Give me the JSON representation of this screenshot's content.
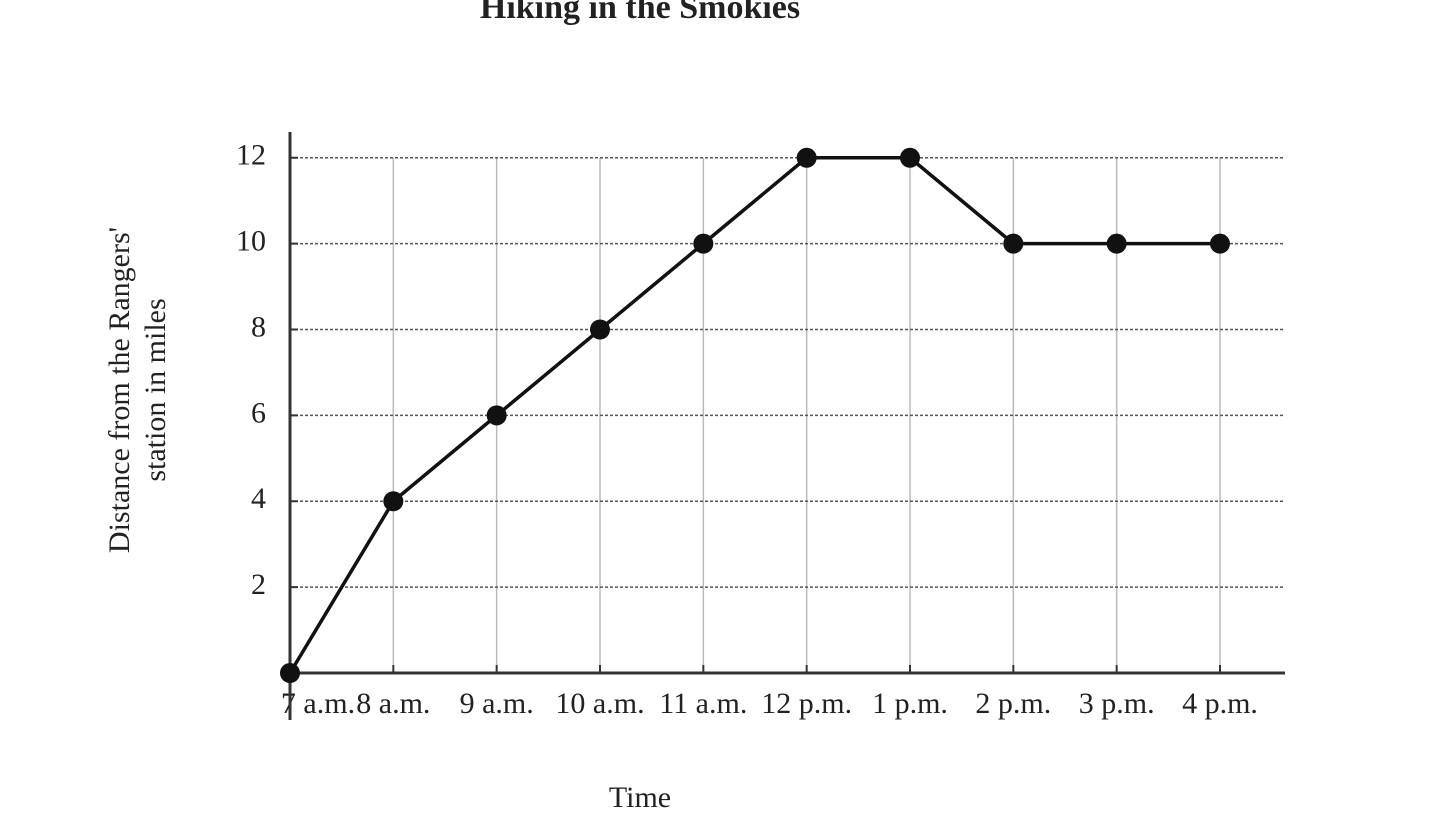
{
  "chart_data": {
    "type": "line",
    "title": "Hiking in the Smokies",
    "x_label": "Time",
    "y_label": [
      "Distance from the Rangers'",
      "station in miles"
    ],
    "categories": [
      "7 a.m.",
      "8 a.m.",
      "9 a.m.",
      "10 a.m.",
      "11 a.m.",
      "12 p.m.",
      "1 p.m.",
      "2 p.m.",
      "3 p.m.",
      "4 p.m."
    ],
    "values": [
      0,
      4,
      6,
      8,
      10,
      12,
      12,
      10,
      10,
      10
    ],
    "color": "#111111",
    "ylim": [
      0,
      12.6
    ],
    "yticks": [
      2,
      4,
      6,
      8,
      10,
      12
    ],
    "grid": true
  }
}
